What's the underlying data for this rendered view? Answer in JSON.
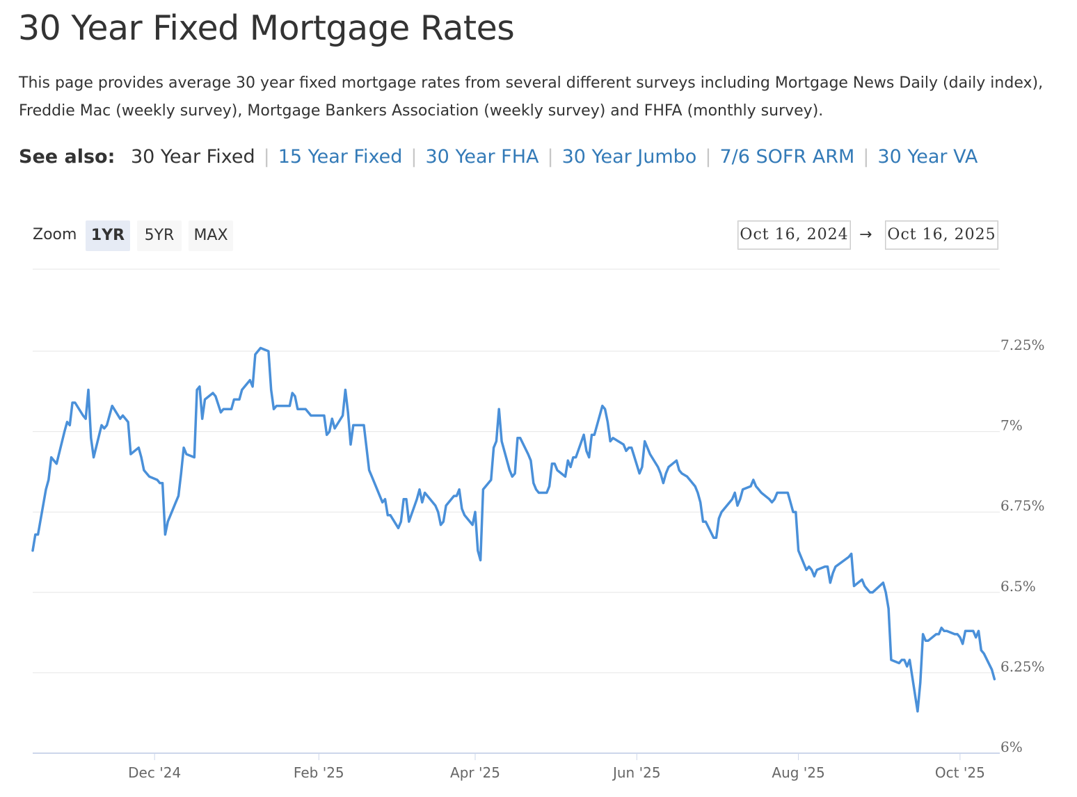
{
  "page": {
    "title": "30 Year Fixed Mortgage Rates",
    "description": "This page provides average 30 year fixed mortgage rates from several different surveys including Mortgage News Daily (daily index), Freddie Mac (weekly survey), Mortgage Bankers Association (weekly survey) and FHFA (monthly survey)."
  },
  "see_also": {
    "label": "See also:",
    "current": "30 Year Fixed",
    "links": [
      "15 Year Fixed",
      "30 Year FHA",
      "30 Year Jumbo",
      "7/6 SOFR ARM",
      "30 Year VA"
    ],
    "separator": "|"
  },
  "zoom": {
    "label": "Zoom",
    "buttons": [
      "1YR",
      "5YR",
      "MAX"
    ],
    "active": "1YR"
  },
  "range": {
    "from": "Oct 16, 2024",
    "arrow": "→",
    "to": "Oct 16, 2025"
  },
  "colors": {
    "line": "#4a90d9",
    "grid": "#e6e6e6",
    "axis": "#ccd6eb",
    "link": "#337ab7"
  },
  "chart_data": {
    "type": "line",
    "title": "",
    "xlabel": "",
    "ylabel": "",
    "x_range": [
      "2024-10-16",
      "2025-10-16"
    ],
    "ylim": [
      6.0,
      7.5
    ],
    "y_ticks": [
      6.0,
      6.25,
      6.5,
      6.75,
      7.0,
      7.25
    ],
    "y_tick_labels": [
      "6%",
      "6.25%",
      "6.5%",
      "6.75%",
      "7%",
      "7.25%"
    ],
    "x_ticks": [
      "2024-12-01",
      "2025-02-01",
      "2025-04-01",
      "2025-06-01",
      "2025-08-01",
      "2025-10-01"
    ],
    "x_tick_labels": [
      "Dec '24",
      "Feb '25",
      "Apr '25",
      "Jun '25",
      "Aug '25",
      "Oct '25"
    ],
    "grid": true,
    "series": [
      {
        "name": "",
        "points": [
          [
            "2024-10-16",
            6.63
          ],
          [
            "2024-10-17",
            6.68
          ],
          [
            "2024-10-18",
            6.68
          ],
          [
            "2024-10-21",
            6.82
          ],
          [
            "2024-10-22",
            6.85
          ],
          [
            "2024-10-23",
            6.92
          ],
          [
            "2024-10-24",
            6.91
          ],
          [
            "2024-10-25",
            6.9
          ],
          [
            "2024-10-28",
            7.0
          ],
          [
            "2024-10-29",
            7.03
          ],
          [
            "2024-10-30",
            7.02
          ],
          [
            "2024-10-31",
            7.09
          ],
          [
            "2024-11-01",
            7.09
          ],
          [
            "2024-11-04",
            7.05
          ],
          [
            "2024-11-05",
            7.04
          ],
          [
            "2024-11-06",
            7.13
          ],
          [
            "2024-11-07",
            6.98
          ],
          [
            "2024-11-08",
            6.92
          ],
          [
            "2024-11-11",
            7.02
          ],
          [
            "2024-11-12",
            7.01
          ],
          [
            "2024-11-13",
            7.02
          ],
          [
            "2024-11-14",
            7.05
          ],
          [
            "2024-11-15",
            7.08
          ],
          [
            "2024-11-18",
            7.04
          ],
          [
            "2024-11-19",
            7.05
          ],
          [
            "2024-11-20",
            7.04
          ],
          [
            "2024-11-21",
            7.03
          ],
          [
            "2024-11-22",
            6.93
          ],
          [
            "2024-11-25",
            6.95
          ],
          [
            "2024-11-26",
            6.92
          ],
          [
            "2024-11-27",
            6.88
          ],
          [
            "2024-11-29",
            6.86
          ],
          [
            "2024-12-02",
            6.85
          ],
          [
            "2024-12-03",
            6.84
          ],
          [
            "2024-12-04",
            6.84
          ],
          [
            "2024-12-05",
            6.68
          ],
          [
            "2024-12-06",
            6.72
          ],
          [
            "2024-12-09",
            6.78
          ],
          [
            "2024-12-10",
            6.8
          ],
          [
            "2024-12-11",
            6.87
          ],
          [
            "2024-12-12",
            6.95
          ],
          [
            "2024-12-13",
            6.93
          ],
          [
            "2024-12-16",
            6.92
          ],
          [
            "2024-12-17",
            7.13
          ],
          [
            "2024-12-18",
            7.14
          ],
          [
            "2024-12-19",
            7.04
          ],
          [
            "2024-12-20",
            7.1
          ],
          [
            "2024-12-23",
            7.12
          ],
          [
            "2024-12-24",
            7.11
          ],
          [
            "2024-12-26",
            7.06
          ],
          [
            "2024-12-27",
            7.07
          ],
          [
            "2024-12-30",
            7.07
          ],
          [
            "2024-12-31",
            7.1
          ],
          [
            "2025-01-02",
            7.1
          ],
          [
            "2025-01-03",
            7.13
          ],
          [
            "2025-01-06",
            7.16
          ],
          [
            "2025-01-07",
            7.14
          ],
          [
            "2025-01-08",
            7.24
          ],
          [
            "2025-01-10",
            7.26
          ],
          [
            "2025-01-13",
            7.25
          ],
          [
            "2025-01-14",
            7.13
          ],
          [
            "2025-01-15",
            7.07
          ],
          [
            "2025-01-16",
            7.08
          ],
          [
            "2025-01-17",
            7.08
          ],
          [
            "2025-01-21",
            7.08
          ],
          [
            "2025-01-22",
            7.12
          ],
          [
            "2025-01-23",
            7.11
          ],
          [
            "2025-01-24",
            7.07
          ],
          [
            "2025-01-27",
            7.07
          ],
          [
            "2025-01-28",
            7.06
          ],
          [
            "2025-01-29",
            7.05
          ],
          [
            "2025-01-30",
            7.05
          ],
          [
            "2025-01-31",
            7.05
          ],
          [
            "2025-02-03",
            7.05
          ],
          [
            "2025-02-04",
            6.99
          ],
          [
            "2025-02-05",
            7.0
          ],
          [
            "2025-02-06",
            7.04
          ],
          [
            "2025-02-07",
            7.01
          ],
          [
            "2025-02-10",
            7.05
          ],
          [
            "2025-02-11",
            7.13
          ],
          [
            "2025-02-12",
            7.06
          ],
          [
            "2025-02-13",
            6.96
          ],
          [
            "2025-02-14",
            7.02
          ],
          [
            "2025-02-18",
            7.02
          ],
          [
            "2025-02-19",
            6.95
          ],
          [
            "2025-02-20",
            6.88
          ],
          [
            "2025-02-21",
            6.86
          ],
          [
            "2025-02-24",
            6.8
          ],
          [
            "2025-02-25",
            6.78
          ],
          [
            "2025-02-26",
            6.79
          ],
          [
            "2025-02-27",
            6.74
          ],
          [
            "2025-02-28",
            6.74
          ],
          [
            "2025-03-03",
            6.7
          ],
          [
            "2025-03-04",
            6.72
          ],
          [
            "2025-03-05",
            6.79
          ],
          [
            "2025-03-06",
            6.79
          ],
          [
            "2025-03-07",
            6.72
          ],
          [
            "2025-03-10",
            6.79
          ],
          [
            "2025-03-11",
            6.82
          ],
          [
            "2025-03-12",
            6.78
          ],
          [
            "2025-03-13",
            6.81
          ],
          [
            "2025-03-14",
            6.8
          ],
          [
            "2025-03-17",
            6.77
          ],
          [
            "2025-03-18",
            6.75
          ],
          [
            "2025-03-19",
            6.71
          ],
          [
            "2025-03-20",
            6.72
          ],
          [
            "2025-03-21",
            6.77
          ],
          [
            "2025-03-24",
            6.8
          ],
          [
            "2025-03-25",
            6.8
          ],
          [
            "2025-03-26",
            6.82
          ],
          [
            "2025-03-27",
            6.76
          ],
          [
            "2025-03-28",
            6.74
          ],
          [
            "2025-03-31",
            6.71
          ],
          [
            "2025-04-01",
            6.75
          ],
          [
            "2025-04-02",
            6.63
          ],
          [
            "2025-04-03",
            6.6
          ],
          [
            "2025-04-04",
            6.82
          ],
          [
            "2025-04-07",
            6.85
          ],
          [
            "2025-04-08",
            6.95
          ],
          [
            "2025-04-09",
            6.97
          ],
          [
            "2025-04-10",
            7.07
          ],
          [
            "2025-04-11",
            6.97
          ],
          [
            "2025-04-14",
            6.88
          ],
          [
            "2025-04-15",
            6.86
          ],
          [
            "2025-04-16",
            6.87
          ],
          [
            "2025-04-17",
            6.98
          ],
          [
            "2025-04-18",
            6.98
          ],
          [
            "2025-04-21",
            6.93
          ],
          [
            "2025-04-22",
            6.91
          ],
          [
            "2025-04-23",
            6.84
          ],
          [
            "2025-04-24",
            6.82
          ],
          [
            "2025-04-25",
            6.81
          ],
          [
            "2025-04-28",
            6.81
          ],
          [
            "2025-04-29",
            6.83
          ],
          [
            "2025-04-30",
            6.9
          ],
          [
            "2025-05-01",
            6.9
          ],
          [
            "2025-05-02",
            6.88
          ],
          [
            "2025-05-05",
            6.86
          ],
          [
            "2025-05-06",
            6.91
          ],
          [
            "2025-05-07",
            6.89
          ],
          [
            "2025-05-08",
            6.92
          ],
          [
            "2025-05-09",
            6.92
          ],
          [
            "2025-05-12",
            6.99
          ],
          [
            "2025-05-13",
            6.94
          ],
          [
            "2025-05-14",
            6.92
          ],
          [
            "2025-05-15",
            6.99
          ],
          [
            "2025-05-16",
            6.99
          ],
          [
            "2025-05-19",
            7.08
          ],
          [
            "2025-05-20",
            7.07
          ],
          [
            "2025-05-21",
            7.03
          ],
          [
            "2025-05-22",
            6.97
          ],
          [
            "2025-05-23",
            6.98
          ],
          [
            "2025-05-27",
            6.96
          ],
          [
            "2025-05-28",
            6.94
          ],
          [
            "2025-05-29",
            6.95
          ],
          [
            "2025-05-30",
            6.95
          ],
          [
            "2025-06-02",
            6.87
          ],
          [
            "2025-06-03",
            6.89
          ],
          [
            "2025-06-04",
            6.97
          ],
          [
            "2025-06-05",
            6.95
          ],
          [
            "2025-06-06",
            6.93
          ],
          [
            "2025-06-09",
            6.89
          ],
          [
            "2025-06-10",
            6.87
          ],
          [
            "2025-06-11",
            6.84
          ],
          [
            "2025-06-12",
            6.87
          ],
          [
            "2025-06-13",
            6.89
          ],
          [
            "2025-06-16",
            6.91
          ],
          [
            "2025-06-17",
            6.88
          ],
          [
            "2025-06-18",
            6.87
          ],
          [
            "2025-06-20",
            6.86
          ],
          [
            "2025-06-23",
            6.83
          ],
          [
            "2025-06-24",
            6.81
          ],
          [
            "2025-06-25",
            6.78
          ],
          [
            "2025-06-26",
            6.72
          ],
          [
            "2025-06-27",
            6.72
          ],
          [
            "2025-06-30",
            6.67
          ],
          [
            "2025-07-01",
            6.67
          ],
          [
            "2025-07-02",
            6.73
          ],
          [
            "2025-07-03",
            6.75
          ],
          [
            "2025-07-07",
            6.79
          ],
          [
            "2025-07-08",
            6.81
          ],
          [
            "2025-07-09",
            6.77
          ],
          [
            "2025-07-10",
            6.79
          ],
          [
            "2025-07-11",
            6.82
          ],
          [
            "2025-07-14",
            6.83
          ],
          [
            "2025-07-15",
            6.85
          ],
          [
            "2025-07-16",
            6.83
          ],
          [
            "2025-07-17",
            6.82
          ],
          [
            "2025-07-18",
            6.81
          ],
          [
            "2025-07-21",
            6.79
          ],
          [
            "2025-07-22",
            6.78
          ],
          [
            "2025-07-23",
            6.79
          ],
          [
            "2025-07-24",
            6.81
          ],
          [
            "2025-07-25",
            6.81
          ],
          [
            "2025-07-28",
            6.81
          ],
          [
            "2025-07-29",
            6.78
          ],
          [
            "2025-07-30",
            6.75
          ],
          [
            "2025-07-31",
            6.75
          ],
          [
            "2025-08-01",
            6.63
          ],
          [
            "2025-08-04",
            6.57
          ],
          [
            "2025-08-05",
            6.58
          ],
          [
            "2025-08-06",
            6.57
          ],
          [
            "2025-08-07",
            6.55
          ],
          [
            "2025-08-08",
            6.57
          ],
          [
            "2025-08-11",
            6.58
          ],
          [
            "2025-08-12",
            6.58
          ],
          [
            "2025-08-13",
            6.53
          ],
          [
            "2025-08-14",
            6.56
          ],
          [
            "2025-08-15",
            6.58
          ],
          [
            "2025-08-20",
            6.61
          ],
          [
            "2025-08-21",
            6.62
          ],
          [
            "2025-08-22",
            6.52
          ],
          [
            "2025-08-25",
            6.54
          ],
          [
            "2025-08-26",
            6.52
          ],
          [
            "2025-08-27",
            6.51
          ],
          [
            "2025-08-28",
            6.5
          ],
          [
            "2025-08-29",
            6.5
          ],
          [
            "2025-09-02",
            6.53
          ],
          [
            "2025-09-03",
            6.5
          ],
          [
            "2025-09-04",
            6.45
          ],
          [
            "2025-09-05",
            6.29
          ],
          [
            "2025-09-08",
            6.28
          ],
          [
            "2025-09-09",
            6.29
          ],
          [
            "2025-09-10",
            6.29
          ],
          [
            "2025-09-11",
            6.27
          ],
          [
            "2025-09-12",
            6.29
          ],
          [
            "2025-09-15",
            6.13
          ],
          [
            "2025-09-16",
            6.22
          ],
          [
            "2025-09-17",
            6.37
          ],
          [
            "2025-09-18",
            6.35
          ],
          [
            "2025-09-19",
            6.35
          ],
          [
            "2025-09-22",
            6.37
          ],
          [
            "2025-09-23",
            6.37
          ],
          [
            "2025-09-24",
            6.39
          ],
          [
            "2025-09-25",
            6.38
          ],
          [
            "2025-09-26",
            6.38
          ],
          [
            "2025-09-29",
            6.37
          ],
          [
            "2025-09-30",
            6.37
          ],
          [
            "2025-10-01",
            6.36
          ],
          [
            "2025-10-02",
            6.34
          ],
          [
            "2025-10-03",
            6.38
          ],
          [
            "2025-10-06",
            6.38
          ],
          [
            "2025-10-07",
            6.36
          ],
          [
            "2025-10-08",
            6.38
          ],
          [
            "2025-10-09",
            6.32
          ],
          [
            "2025-10-10",
            6.31
          ],
          [
            "2025-10-13",
            6.26
          ],
          [
            "2025-10-14",
            6.23
          ]
        ]
      }
    ]
  }
}
